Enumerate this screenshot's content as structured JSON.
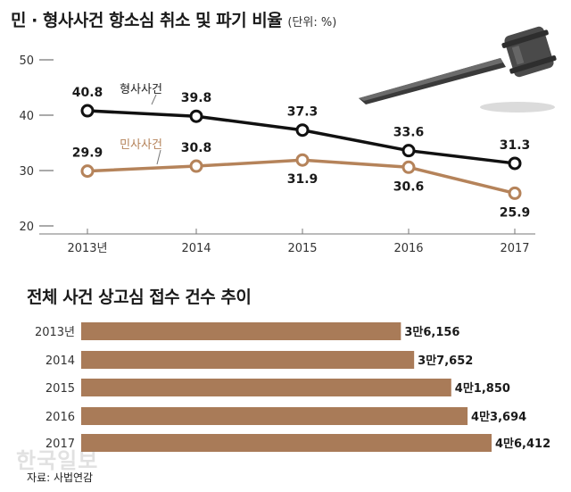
{
  "header": {
    "title": "민 · 형사사건 항소심 취소 및 파기 비율",
    "unit": "(단위: %)"
  },
  "source": "자료: 사법연감",
  "watermark": "한국일보",
  "colors": {
    "criminal": "#111111",
    "civil": "#b5835a",
    "bar": "#a97b58"
  },
  "chart_data": [
    {
      "type": "line",
      "title": "민 · 형사사건 항소심 취소 및 파기 비율",
      "unit": "%",
      "x": [
        "2013년",
        "2014",
        "2015",
        "2016",
        "2017"
      ],
      "ylim": [
        20,
        50
      ],
      "yticks": [
        20,
        30,
        40,
        50
      ],
      "grid": false,
      "series": [
        {
          "name": "형사사건",
          "values": [
            40.8,
            39.8,
            37.3,
            33.6,
            31.3
          ]
        },
        {
          "name": "민사사건",
          "values": [
            29.9,
            30.8,
            31.9,
            30.6,
            25.9
          ]
        }
      ],
      "value_labels": {
        "형사사건": [
          "40.8",
          "39.8",
          "37.3",
          "33.6",
          "31.3"
        ],
        "민사사건": [
          "29.9",
          "30.8",
          "31.9",
          "30.6",
          "25.9"
        ]
      }
    },
    {
      "type": "bar",
      "orientation": "horizontal",
      "title": "전체 사건 상고심 접수 건수 추이",
      "categories": [
        "2013년",
        "2014",
        "2015",
        "2016",
        "2017"
      ],
      "values": [
        36156,
        37652,
        41850,
        43694,
        46412
      ],
      "value_labels": [
        "3만6,156",
        "3만7,652",
        "4만1,850",
        "4만3,694",
        "4만6,412"
      ]
    }
  ]
}
